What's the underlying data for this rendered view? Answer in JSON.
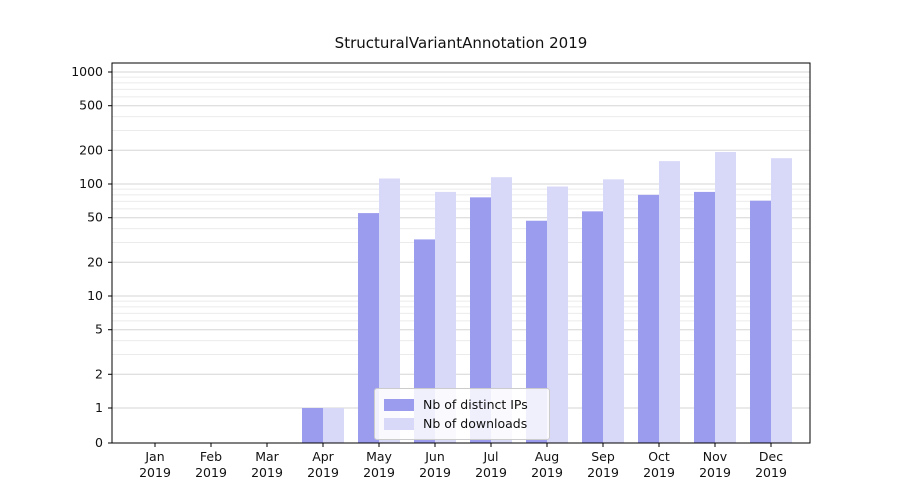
{
  "chart_data": {
    "type": "bar",
    "title": "StructuralVariantAnnotation 2019",
    "xlabel": "",
    "ylabel": "",
    "yscale": "symlog",
    "ylim": [
      0,
      1000
    ],
    "grid": true,
    "legend_position": "lower center",
    "categories": [
      "Jan",
      "Feb",
      "Mar",
      "Apr",
      "May",
      "Jun",
      "Jul",
      "Aug",
      "Sep",
      "Oct",
      "Nov",
      "Dec"
    ],
    "year_label": "2019",
    "yticks": [
      0,
      1,
      2,
      5,
      10,
      20,
      50,
      100,
      200,
      500,
      1000
    ],
    "series": [
      {
        "name": "Nb of distinct IPs",
        "color": "#9c9cee",
        "values": [
          0,
          0,
          0,
          1,
          55,
          32,
          76,
          47,
          57,
          80,
          85,
          71
        ]
      },
      {
        "name": "Nb of downloads",
        "color": "#d8d8f8",
        "values": [
          0,
          0,
          0,
          1,
          112,
          85,
          115,
          95,
          110,
          160,
          193,
          170
        ]
      }
    ]
  }
}
